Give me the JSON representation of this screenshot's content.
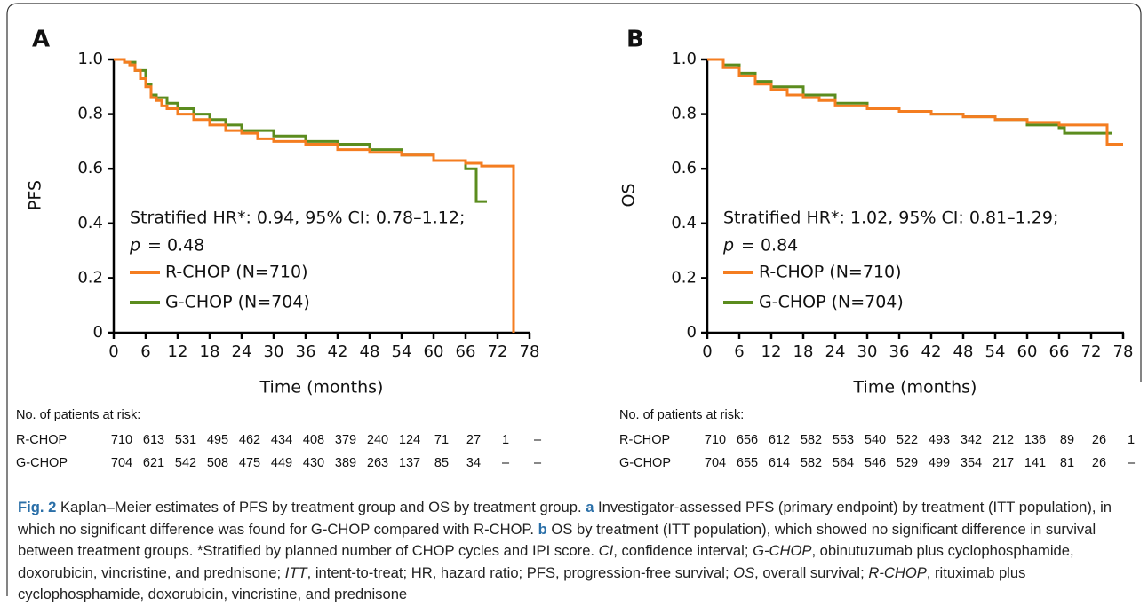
{
  "chart_data": [
    {
      "type": "step",
      "panel": "A",
      "y_label": "PFS",
      "x_label": "Time (months)",
      "annotation": "Stratified HR*: 0.94, 95% CI: 0.78–1.12;",
      "p_label": "p",
      "p_text": "= 0.48",
      "xlim": [
        0,
        78
      ],
      "xticks": [
        0,
        6,
        12,
        18,
        24,
        30,
        36,
        42,
        48,
        54,
        60,
        66,
        72,
        78
      ],
      "ylim": [
        0,
        1
      ],
      "yticks": [
        0,
        0.2,
        0.4,
        0.6,
        0.8,
        {
          "value": 1,
          "label": "1.0"
        }
      ],
      "series": [
        {
          "name": "R-CHOP (N=710)",
          "color": "#f47d20",
          "x": [
            0,
            1,
            2,
            3,
            4,
            5,
            6,
            7,
            8,
            9,
            10,
            12,
            15,
            18,
            21,
            24,
            27,
            30,
            36,
            42,
            48,
            54,
            60,
            66,
            69,
            72,
            75,
            75
          ],
          "values": [
            1,
            1,
            0.99,
            0.98,
            0.96,
            0.93,
            0.9,
            0.86,
            0.85,
            0.83,
            0.82,
            0.8,
            0.78,
            0.76,
            0.74,
            0.73,
            0.71,
            0.7,
            0.69,
            0.67,
            0.66,
            0.65,
            0.63,
            0.62,
            0.61,
            0.61,
            0.61,
            0
          ]
        },
        {
          "name": "G-CHOP (N=704)",
          "color": "#5b8c1e",
          "x": [
            0,
            2,
            4,
            6,
            7,
            8,
            10,
            12,
            15,
            18,
            21,
            24,
            30,
            36,
            42,
            48,
            54,
            60,
            66,
            68,
            70
          ],
          "values": [
            1,
            0.99,
            0.96,
            0.91,
            0.87,
            0.86,
            0.84,
            0.82,
            0.8,
            0.78,
            0.76,
            0.74,
            0.72,
            0.7,
            0.69,
            0.67,
            0.65,
            0.63,
            0.6,
            0.48,
            0.48
          ]
        }
      ]
    },
    {
      "type": "step",
      "panel": "B",
      "y_label": "OS",
      "x_label": "Time (months)",
      "annotation": "Stratified HR*: 1.02, 95% CI: 0.81–1.29;",
      "p_label": "p",
      "p_text": "= 0.84",
      "xlim": [
        0,
        78
      ],
      "xticks": [
        0,
        6,
        12,
        18,
        24,
        30,
        36,
        42,
        48,
        54,
        60,
        66,
        72,
        78
      ],
      "ylim": [
        0,
        1
      ],
      "yticks": [
        0,
        0.2,
        0.4,
        0.6,
        0.8,
        {
          "value": 1,
          "label": "1.0"
        }
      ],
      "series": [
        {
          "name": "R-CHOP (N=710)",
          "color": "#f47d20",
          "x": [
            0,
            3,
            6,
            9,
            12,
            15,
            18,
            21,
            24,
            30,
            36,
            42,
            48,
            54,
            60,
            66,
            72,
            75,
            75,
            78
          ],
          "values": [
            1,
            0.97,
            0.94,
            0.91,
            0.89,
            0.87,
            0.86,
            0.85,
            0.83,
            0.82,
            0.81,
            0.8,
            0.79,
            0.78,
            0.77,
            0.76,
            0.76,
            0.76,
            0.69,
            0.69
          ]
        },
        {
          "name": "G-CHOP (N=704)",
          "color": "#5b8c1e",
          "x": [
            0,
            3,
            6,
            9,
            12,
            18,
            24,
            30,
            36,
            42,
            48,
            54,
            60,
            66,
            67,
            75,
            76
          ],
          "values": [
            1,
            0.98,
            0.95,
            0.92,
            0.9,
            0.87,
            0.84,
            0.82,
            0.81,
            0.8,
            0.79,
            0.78,
            0.76,
            0.75,
            0.73,
            0.73,
            0.73
          ]
        }
      ]
    }
  ],
  "risk_tables": [
    {
      "title": "No. of patients at risk:",
      "rows": [
        {
          "label": "R-CHOP",
          "values": [
            710,
            613,
            531,
            495,
            462,
            434,
            408,
            379,
            240,
            124,
            71,
            27,
            1,
            "–"
          ]
        },
        {
          "label": "G-CHOP",
          "values": [
            704,
            621,
            542,
            508,
            475,
            449,
            430,
            389,
            263,
            137,
            85,
            34,
            "–",
            "–"
          ]
        }
      ]
    },
    {
      "title": "No. of patients at risk:",
      "rows": [
        {
          "label": "R-CHOP",
          "values": [
            710,
            656,
            612,
            582,
            553,
            540,
            522,
            493,
            342,
            212,
            136,
            89,
            26,
            1
          ]
        },
        {
          "label": "G-CHOP",
          "values": [
            704,
            655,
            614,
            582,
            564,
            546,
            529,
            499,
            354,
            217,
            141,
            81,
            26,
            "–"
          ]
        }
      ]
    }
  ],
  "caption": [
    "Fig. 2",
    " Kaplan–Meier estimates of PFS by treatment group and OS by treatment group. ",
    "a",
    " Investigator-assessed PFS (primary endpoint) by treatment (ITT population), in which no significant difference was found for G-CHOP compared with R-CHOP. ",
    "b",
    " OS by treatment (ITT population), which showed no significant difference in survival between treatment groups. *Stratified by planned number of CHOP cycles and IPI score. ",
    "CI",
    ", confidence interval; ",
    "G-CHOP",
    ", obinutuzumab plus cyclophosphamide, doxorubicin, vincristine, and prednisone; ",
    "ITT",
    ", intent-to-treat; HR, hazard ratio; PFS, progression-free survival; ",
    "OS",
    ", overall survival; ",
    "R-CHOP",
    ", rituximab plus cyclophosphamide, doxorubicin, vincristine, and prednisone"
  ]
}
